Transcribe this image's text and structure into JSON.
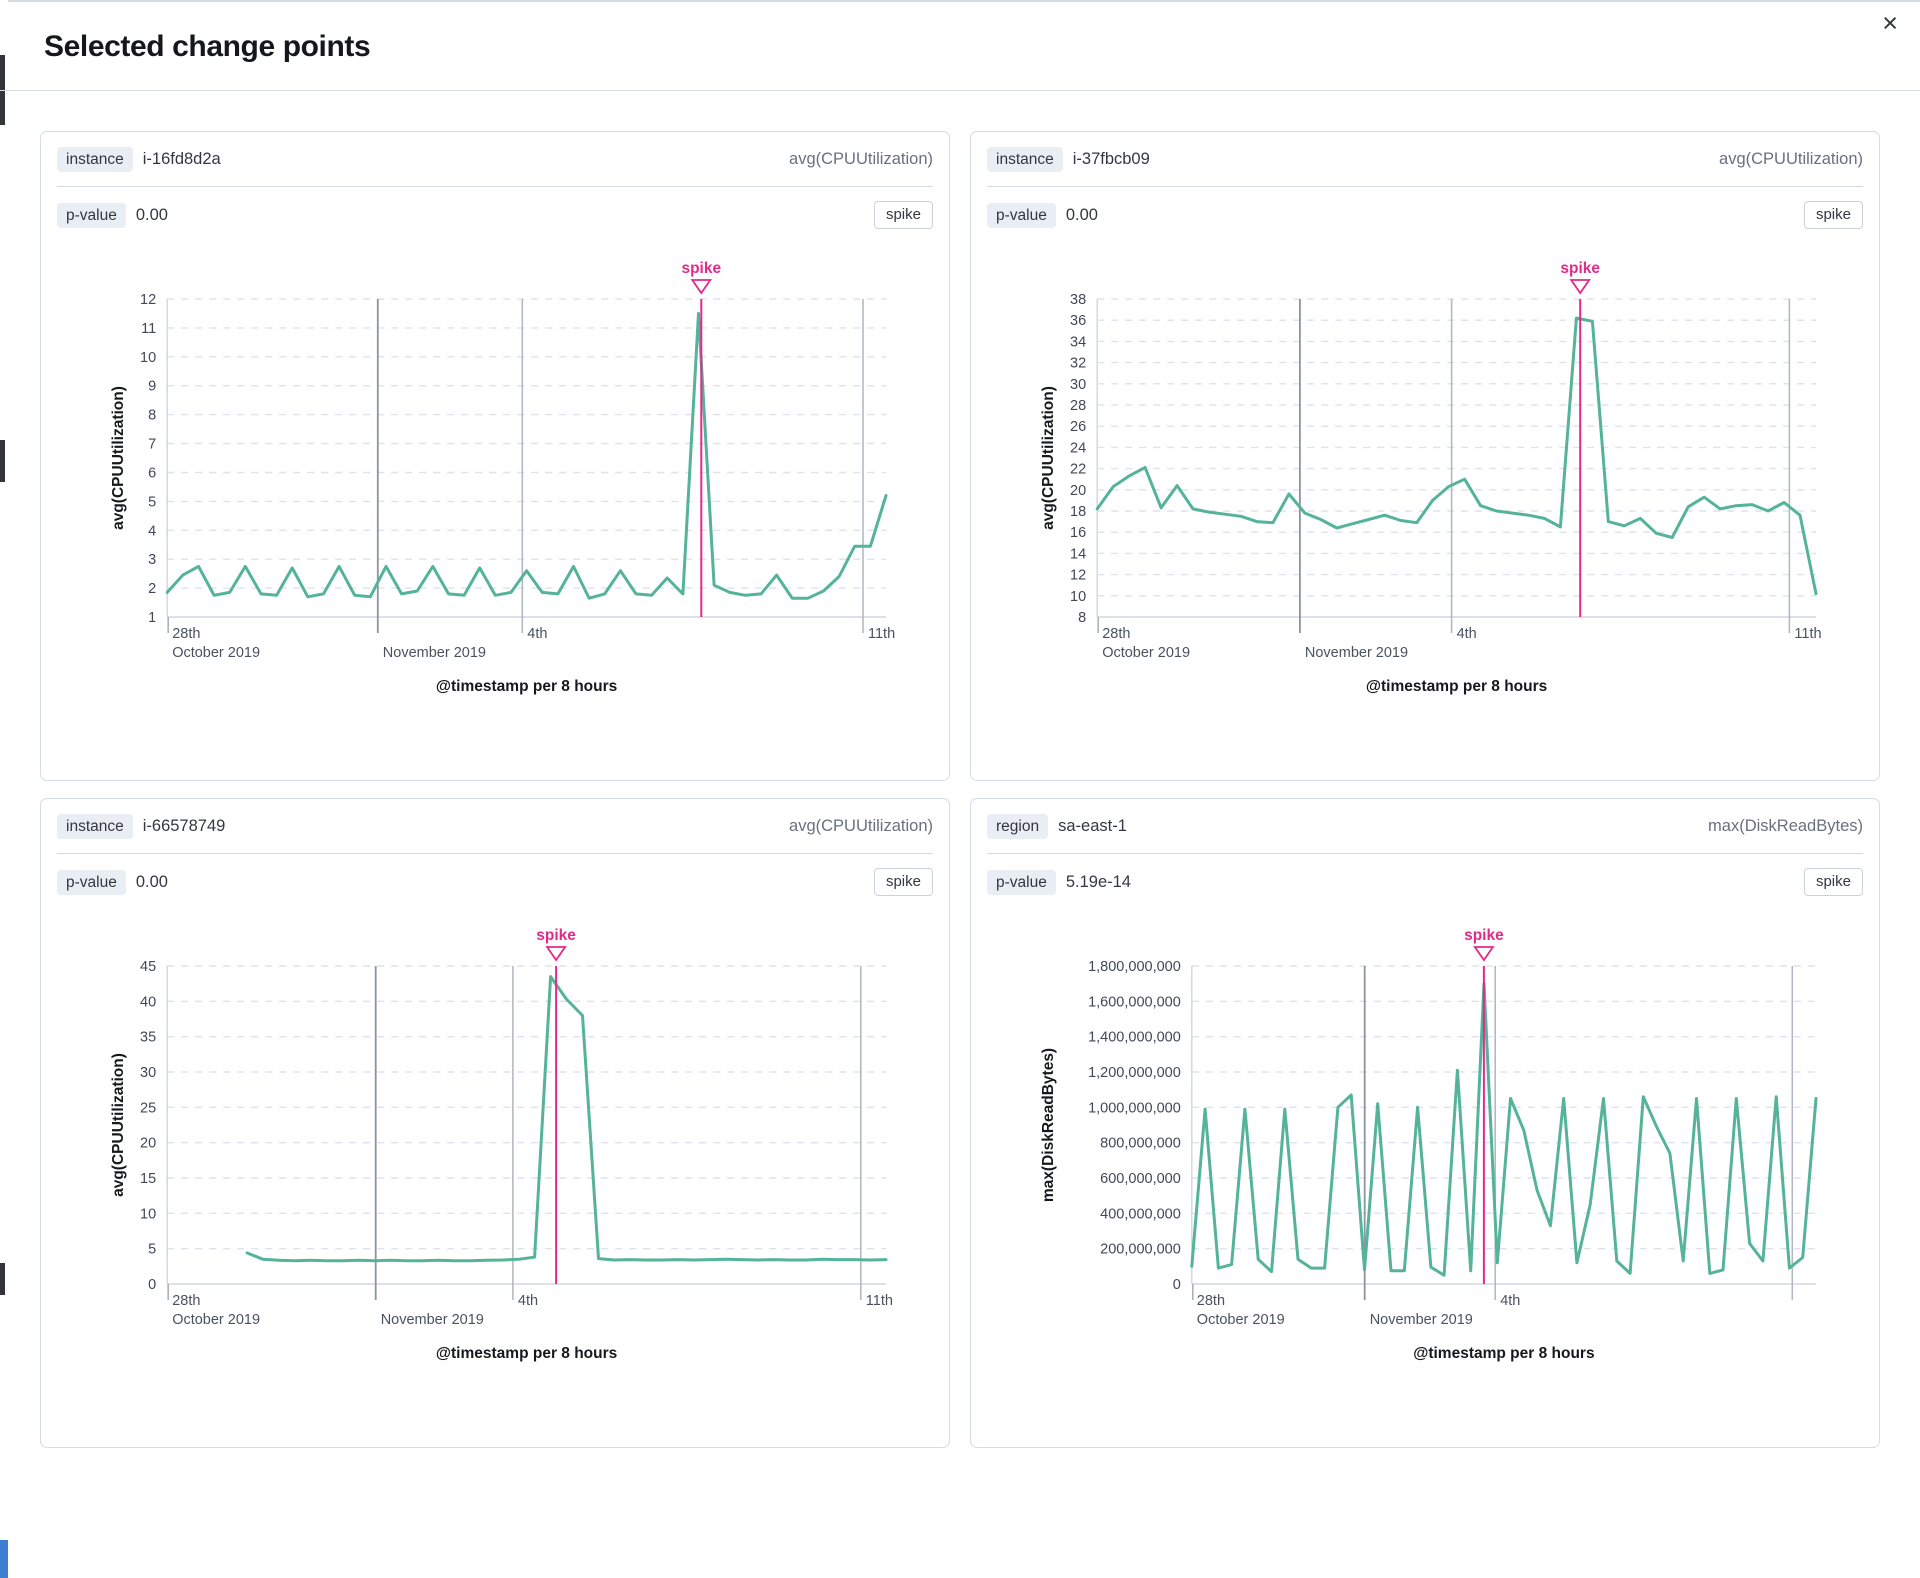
{
  "modal": {
    "title": "Selected change points",
    "close_icon": "×"
  },
  "panels": [
    {
      "key_label": "instance",
      "key_value": "i-16fd8d2a",
      "metric": "avg(CPUUtilization)",
      "p_label": "p-value",
      "p_value": "0.00",
      "type_badge": "spike"
    },
    {
      "key_label": "instance",
      "key_value": "i-37fbcb09",
      "metric": "avg(CPUUtilization)",
      "p_label": "p-value",
      "p_value": "0.00",
      "type_badge": "spike"
    },
    {
      "key_label": "instance",
      "key_value": "i-66578749",
      "metric": "avg(CPUUtilization)",
      "p_label": "p-value",
      "p_value": "0.00",
      "type_badge": "spike"
    },
    {
      "key_label": "region",
      "key_value": "sa-east-1",
      "metric": "max(DiskReadBytes)",
      "p_label": "p-value",
      "p_value": "5.19e-14",
      "type_badge": "spike"
    }
  ],
  "chart_data": [
    {
      "type": "line",
      "ylabel": "avg(CPUUtilization)",
      "xlabel": "@timestamp per 8 hours",
      "ylim": [
        1,
        12
      ],
      "y_ticks": [
        1,
        2,
        3,
        4,
        5,
        6,
        7,
        8,
        9,
        10,
        11,
        12
      ],
      "y_tick_labels": [
        "1",
        "2",
        "3",
        "4",
        "5",
        "6",
        "7",
        "8",
        "9",
        "10",
        "11",
        "12"
      ],
      "values": [
        1.85,
        2.45,
        2.75,
        1.75,
        1.85,
        2.75,
        1.8,
        1.75,
        2.7,
        1.7,
        1.8,
        2.75,
        1.75,
        1.7,
        2.75,
        1.8,
        1.9,
        2.75,
        1.8,
        1.75,
        2.7,
        1.75,
        1.85,
        2.6,
        1.85,
        1.8,
        2.75,
        1.65,
        1.8,
        2.6,
        1.8,
        1.75,
        2.35,
        1.8,
        11.5,
        2.1,
        1.85,
        1.75,
        1.8,
        2.45,
        1.65,
        1.65,
        1.9,
        2.4,
        3.45,
        3.45,
        5.2
      ],
      "x_start_label": {
        "line1": "28th",
        "line2": "October 2019"
      },
      "x_gridlines": [
        {
          "pos": 0.293,
          "label": "November 2019",
          "row": 2,
          "strong": true
        },
        {
          "pos": 0.494,
          "label": "4th",
          "row": 1
        },
        {
          "pos": 0.968,
          "label": "11th",
          "row": 1
        }
      ],
      "annotation": {
        "label": "spike",
        "pos": 0.743
      },
      "line_color": "#54b399",
      "annotation_color": "#e5298a",
      "grid": true
    },
    {
      "type": "line",
      "ylabel": "avg(CPUUtilization)",
      "xlabel": "@timestamp per 8 hours",
      "ylim": [
        8,
        38
      ],
      "y_ticks": [
        8,
        10,
        12,
        14,
        16,
        18,
        20,
        22,
        24,
        26,
        28,
        30,
        32,
        34,
        36,
        38
      ],
      "y_tick_labels": [
        "8",
        "10",
        "12",
        "14",
        "16",
        "18",
        "20",
        "22",
        "24",
        "26",
        "28",
        "30",
        "32",
        "34",
        "36",
        "38"
      ],
      "values": [
        18.2,
        20.3,
        21.3,
        22.1,
        18.3,
        20.4,
        18.2,
        17.9,
        17.7,
        17.5,
        17.0,
        16.9,
        19.6,
        17.8,
        17.2,
        16.4,
        16.8,
        17.2,
        17.6,
        17.1,
        16.9,
        19.0,
        20.3,
        21.0,
        18.5,
        18.0,
        17.8,
        17.6,
        17.3,
        16.5,
        36.2,
        35.9,
        17.0,
        16.6,
        17.3,
        15.9,
        15.5,
        18.4,
        19.3,
        18.2,
        18.5,
        18.6,
        18.0,
        18.8,
        17.6,
        10.2
      ],
      "x_start_label": {
        "line1": "28th",
        "line2": "October 2019"
      },
      "x_gridlines": [
        {
          "pos": 0.282,
          "label": "November 2019",
          "row": 2,
          "strong": true
        },
        {
          "pos": 0.493,
          "label": "4th",
          "row": 1
        },
        {
          "pos": 0.963,
          "label": "11th",
          "row": 1
        }
      ],
      "annotation": {
        "label": "spike",
        "pos": 0.672
      },
      "line_color": "#54b399",
      "annotation_color": "#e5298a",
      "grid": true
    },
    {
      "type": "line",
      "ylabel": "avg(CPUUtilization)",
      "xlabel": "@timestamp per 8 hours",
      "ylim": [
        0,
        45
      ],
      "y_ticks": [
        0,
        5,
        10,
        15,
        20,
        25,
        30,
        35,
        40,
        45
      ],
      "y_tick_labels": [
        "0",
        "5",
        "10",
        "15",
        "20",
        "25",
        "30",
        "35",
        "40",
        "45"
      ],
      "values": [
        null,
        null,
        null,
        null,
        null,
        4.4,
        3.5,
        3.35,
        3.3,
        3.35,
        3.3,
        3.3,
        3.35,
        3.3,
        3.35,
        3.3,
        3.3,
        3.35,
        3.3,
        3.3,
        3.35,
        3.4,
        3.5,
        3.8,
        43.5,
        40.3,
        38.0,
        3.6,
        3.4,
        3.45,
        3.4,
        3.4,
        3.45,
        3.4,
        3.45,
        3.5,
        3.45,
        3.4,
        3.45,
        3.4,
        3.4,
        3.5,
        3.45,
        3.45,
        3.4,
        3.45
      ],
      "x_start_label": {
        "line1": "28th",
        "line2": "October 2019"
      },
      "x_gridlines": [
        {
          "pos": 0.29,
          "label": "November 2019",
          "row": 2,
          "strong": true
        },
        {
          "pos": 0.481,
          "label": "4th",
          "row": 1
        },
        {
          "pos": 0.965,
          "label": "11th",
          "row": 1
        }
      ],
      "annotation": {
        "label": "spike",
        "pos": 0.541
      },
      "line_color": "#54b399",
      "annotation_color": "#e5298a",
      "grid": true
    },
    {
      "type": "line",
      "ylabel": "max(DiskReadBytes)",
      "xlabel": "@timestamp per 8 hours",
      "ylim": [
        0,
        1800000000
      ],
      "y_ticks": [
        0,
        200000000,
        400000000,
        600000000,
        800000000,
        1000000000,
        1200000000,
        1400000000,
        1600000000,
        1800000000
      ],
      "y_tick_labels": [
        "0",
        "200,000,000",
        "400,000,000",
        "600,000,000",
        "800,000,000",
        "1,000,000,000",
        "1,200,000,000",
        "1,400,000,000",
        "1,600,000,000",
        "1,800,000,000"
      ],
      "values": [
        100000000,
        990000000,
        90000000,
        110000000,
        990000000,
        140000000,
        70000000,
        990000000,
        140000000,
        90000000,
        90000000,
        1000000000,
        1070000000,
        80000000,
        1020000000,
        75000000,
        75000000,
        1000000000,
        95000000,
        50000000,
        1210000000,
        75000000,
        1700000000,
        120000000,
        1050000000,
        870000000,
        530000000,
        330000000,
        1050000000,
        120000000,
        450000000,
        1050000000,
        130000000,
        60000000,
        1060000000,
        890000000,
        740000000,
        130000000,
        1050000000,
        60000000,
        80000000,
        1050000000,
        230000000,
        130000000,
        1060000000,
        90000000,
        150000000,
        1050000000
      ],
      "x_start_label": {
        "line1": "28th",
        "line2": "October 2019"
      },
      "x_gridlines": [
        {
          "pos": 0.277,
          "label": "November 2019",
          "row": 2,
          "strong": true
        },
        {
          "pos": 0.486,
          "label": "4th",
          "row": 1
        },
        {
          "pos": 0.962,
          "label": "",
          "row": 1
        }
      ],
      "annotation": {
        "label": "spike",
        "pos": 0.468
      },
      "line_color": "#54b399",
      "annotation_color": "#e5298a",
      "grid": true
    }
  ]
}
